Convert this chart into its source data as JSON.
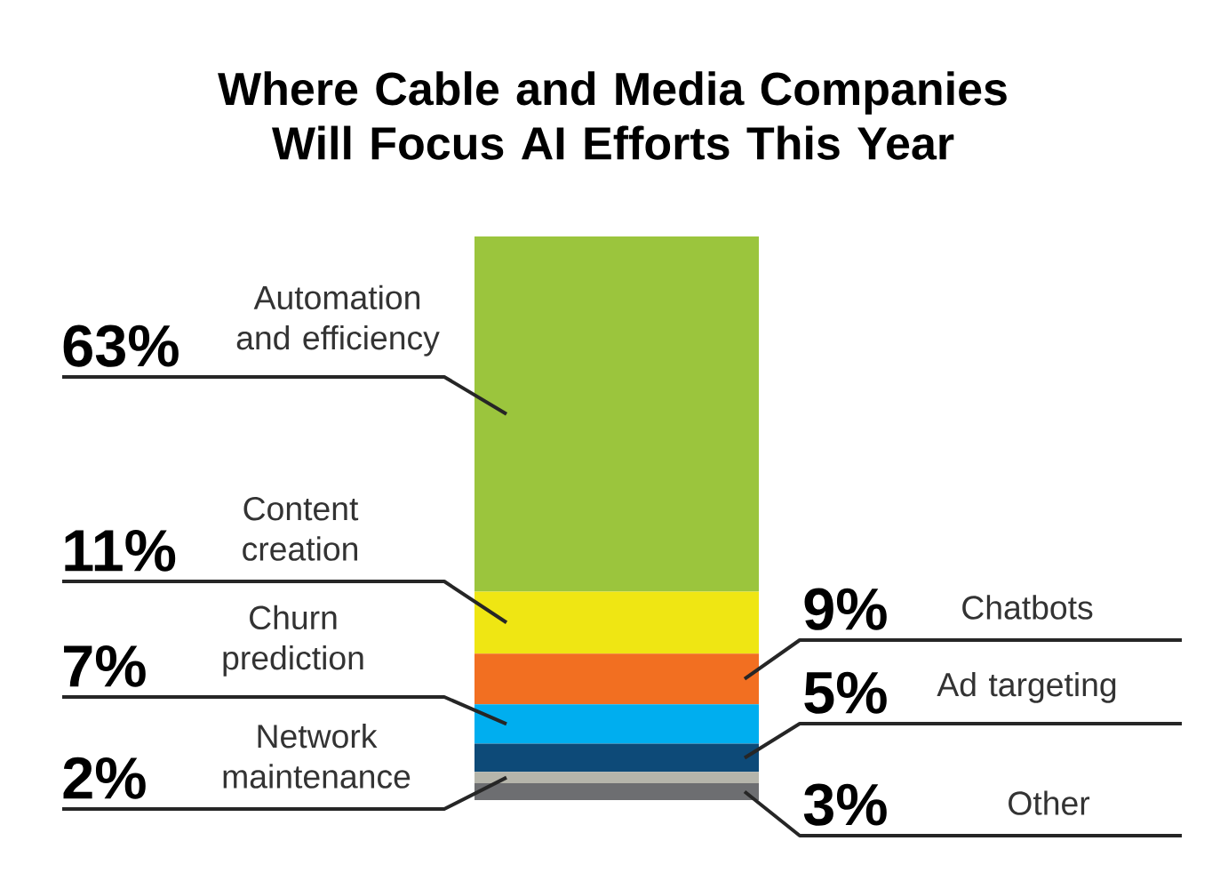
{
  "chart_data": {
    "type": "bar",
    "title": "Where Cable and Media Companies Will Focus AI Efforts This Year",
    "stacked": true,
    "categories": [
      null
    ],
    "series": [
      {
        "name": "Other",
        "color": "#6d6e71",
        "values": [
          3
        ],
        "value_labels": [
          "3%"
        ]
      },
      {
        "name": "Network maintenance",
        "color": "#b5b5ab",
        "values": [
          2
        ],
        "value_labels": [
          "2%"
        ]
      },
      {
        "name": "Ad targeting",
        "color": "#0d4a78",
        "values": [
          5
        ],
        "value_labels": [
          "5%"
        ]
      },
      {
        "name": "Churn prediction",
        "color": "#00aeef",
        "values": [
          7
        ],
        "value_labels": [
          "7%"
        ]
      },
      {
        "name": "Chatbots",
        "color": "#f26f21",
        "values": [
          9
        ],
        "value_labels": [
          "9%"
        ]
      },
      {
        "name": "Content creation",
        "color": "#efe613",
        "values": [
          11
        ],
        "value_labels": [
          "11%"
        ]
      },
      {
        "name": "Automation and efficiency",
        "color": "#9bc53d",
        "values": [
          63
        ],
        "value_labels": [
          "63%"
        ]
      }
    ]
  }
}
